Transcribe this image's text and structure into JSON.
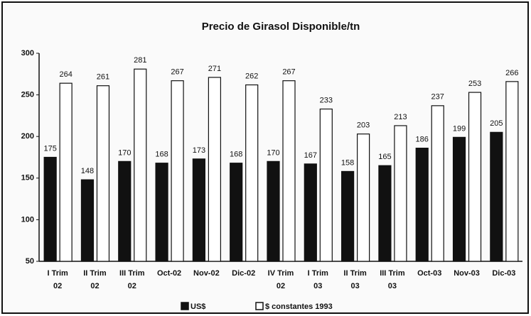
{
  "chart_data": {
    "type": "bar",
    "title": "Precio de Girasol Disponible/tn",
    "categories": [
      "I Trim 02",
      "II Trim 02",
      "III Trim 02",
      "Oct-02",
      "Nov-02",
      "Dic-02",
      "IV Trim 02",
      "I Trim 03",
      "II Trim 03",
      "III Trim 03",
      "Oct-03",
      "Nov-03",
      "Dic-03"
    ],
    "series": [
      {
        "name": "US$",
        "color": "#111111",
        "values": [
          175,
          148,
          170,
          168,
          173,
          168,
          170,
          167,
          158,
          165,
          186,
          199,
          205
        ]
      },
      {
        "name": "$ constantes 1993",
        "color": "#ffffff",
        "values": [
          264,
          261,
          281,
          267,
          271,
          262,
          267,
          233,
          203,
          213,
          237,
          253,
          266
        ]
      }
    ],
    "ylim": [
      50,
      300
    ],
    "yticks": [
      50,
      100,
      150,
      200,
      250,
      300
    ],
    "grid": false
  }
}
